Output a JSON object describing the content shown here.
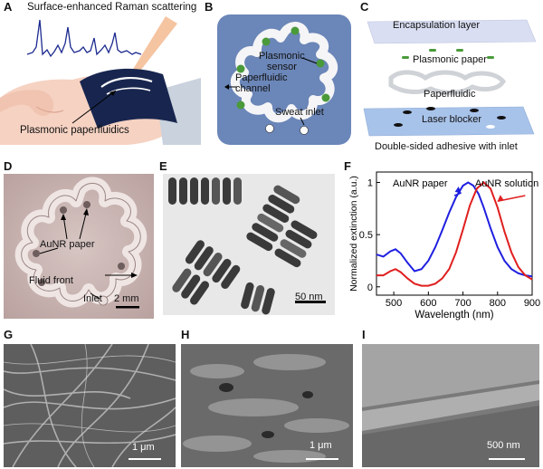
{
  "panels": {
    "A": {
      "letter": "A",
      "title": "Surface-enhanced Raman scattering",
      "callout": "Plasmonic paperfluidics"
    },
    "B": {
      "letter": "B",
      "labels": {
        "sensor": "Plasmonic\nsensor",
        "channel": "Paperfluidic\nchannel",
        "inlet": "Sweat inlet"
      }
    },
    "C": {
      "letter": "C",
      "layers": [
        "Encapsulation layer",
        "Plasmonic paper",
        "Paperfluidic",
        "Laser blocker"
      ],
      "caption": "Double-sided adhesive with inlet"
    },
    "D": {
      "letter": "D",
      "labels": {
        "aunr": "AuNR paper",
        "front": "Fluid front",
        "inlet": "Inlet"
      },
      "scale": "2 mm"
    },
    "E": {
      "letter": "E",
      "scale": "50 nm"
    },
    "F": {
      "letter": "F"
    },
    "G": {
      "letter": "G",
      "scale": "1 μm"
    },
    "H": {
      "letter": "H",
      "scale": "1 μm"
    },
    "I": {
      "letter": "I",
      "scale": "500 nm"
    }
  },
  "colors": {
    "paper_series": "#1f1fe0",
    "solution_series": "#e01f1f",
    "device_blue": "#6b86b8",
    "sensor_green": "#4a9a3a"
  },
  "chart_data": {
    "type": "line",
    "xlabel": "Wavelength (nm)",
    "ylabel": "Normalized extinction (a.u.)",
    "xlim": [
      450,
      900
    ],
    "ylim": [
      -0.08,
      1.1
    ],
    "xticks": [
      "500",
      "600",
      "700",
      "800",
      "900"
    ],
    "yticks": [
      "0",
      "0.5",
      "1"
    ],
    "series": [
      {
        "name": "AuNR paper",
        "color": "#1f1fe0",
        "x": [
          450,
          470,
          490,
          505,
          520,
          540,
          560,
          580,
          600,
          620,
          640,
          660,
          680,
          700,
          715,
          730,
          745,
          760,
          780,
          800,
          820,
          840,
          860,
          880,
          900
        ],
        "y": [
          0.31,
          0.29,
          0.34,
          0.36,
          0.32,
          0.23,
          0.15,
          0.17,
          0.25,
          0.38,
          0.54,
          0.71,
          0.86,
          0.97,
          1.0,
          0.97,
          0.89,
          0.76,
          0.56,
          0.38,
          0.25,
          0.17,
          0.13,
          0.11,
          0.1
        ]
      },
      {
        "name": "AuNR solution",
        "color": "#e01f1f",
        "x": [
          450,
          470,
          490,
          505,
          520,
          540,
          560,
          580,
          600,
          620,
          640,
          660,
          680,
          700,
          720,
          740,
          760,
          780,
          800,
          820,
          840,
          860,
          880,
          900
        ],
        "y": [
          0.11,
          0.11,
          0.15,
          0.17,
          0.14,
          0.08,
          0.03,
          0.01,
          0.01,
          0.03,
          0.08,
          0.17,
          0.33,
          0.55,
          0.78,
          0.94,
          1.0,
          0.94,
          0.76,
          0.53,
          0.33,
          0.19,
          0.11,
          0.07
        ]
      }
    ]
  }
}
